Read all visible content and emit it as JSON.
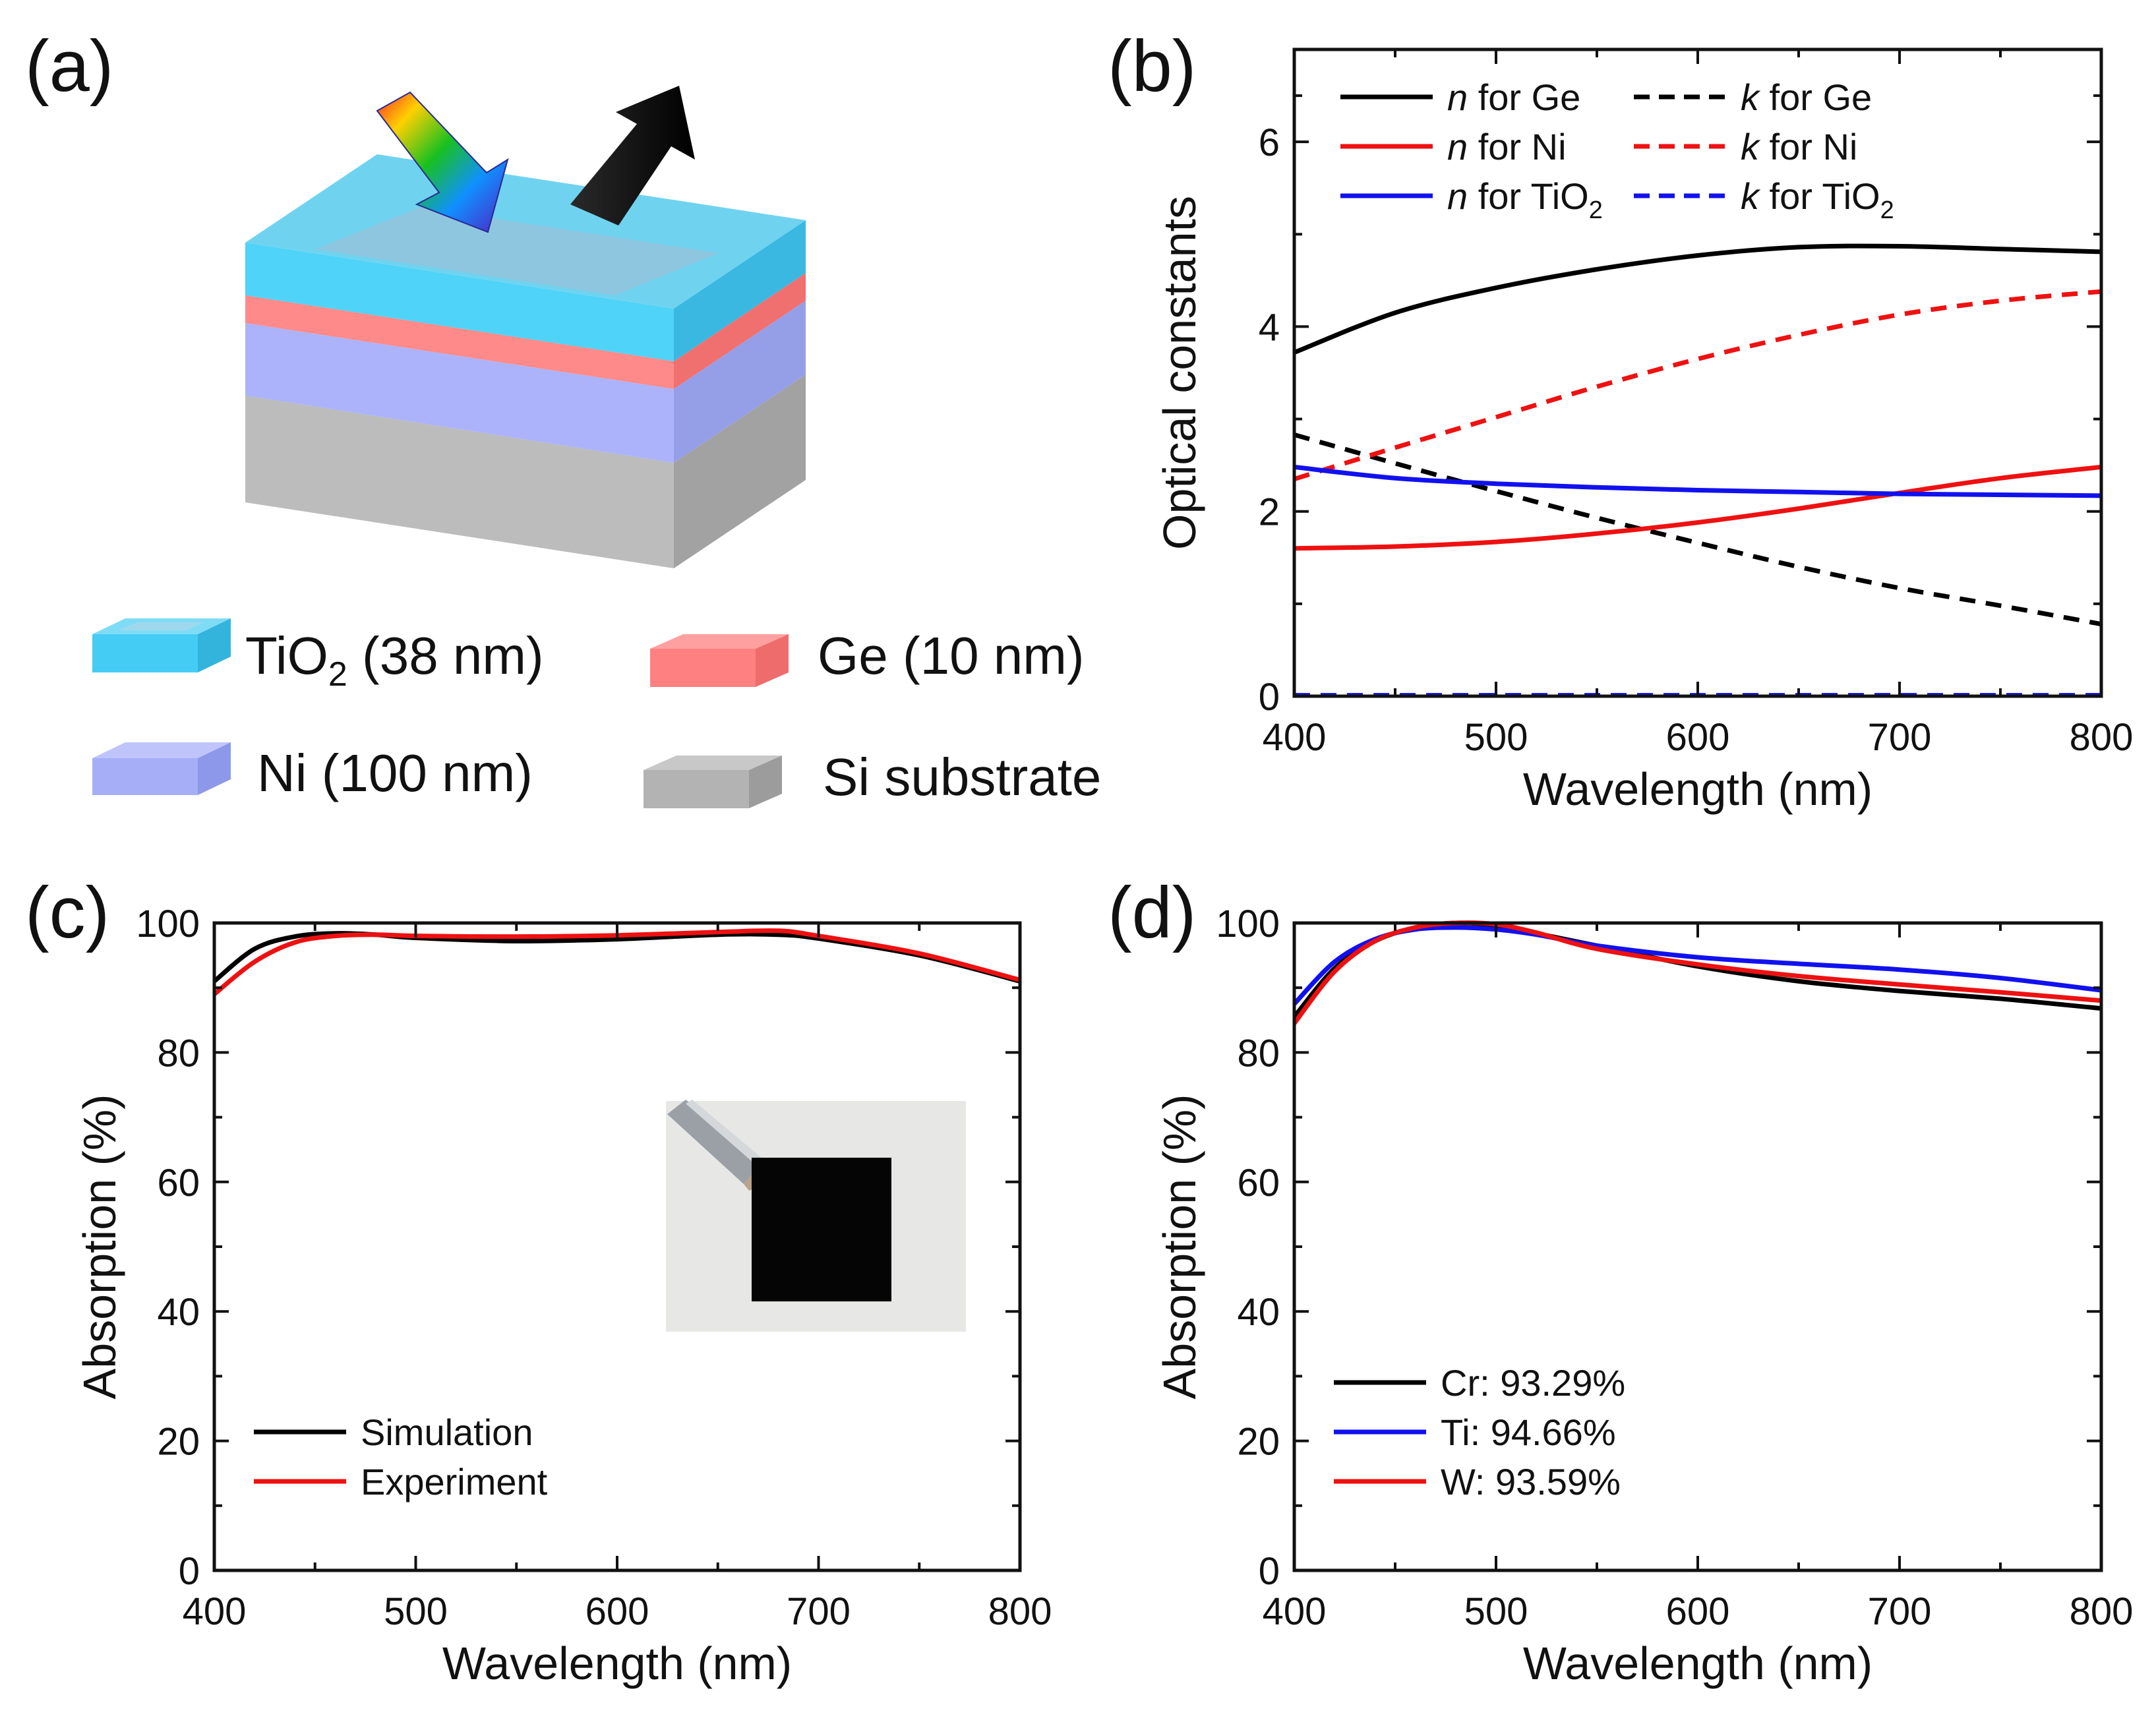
{
  "panels": {
    "a": {
      "label": "(a)",
      "layers": [
        {
          "name": "TiO",
          "sub": "2",
          "suffix": " (38 nm)",
          "color": "#45ccf5"
        },
        {
          "name": "Ge (10 nm)",
          "color": "#ff8080"
        },
        {
          "name": "Ni (100 nm)",
          "color": "#a6aef8"
        },
        {
          "name": "Si substrate",
          "color": "#b3b3b3"
        }
      ]
    },
    "b": {
      "label": "(b)"
    },
    "c": {
      "label": "(c)"
    },
    "d": {
      "label": "(d)"
    }
  },
  "chart_data": [
    {
      "id": "b",
      "type": "line",
      "xlabel": "Wavelength (nm)",
      "ylabel": "Optical constants",
      "xlim": [
        400,
        800
      ],
      "ylim": [
        0,
        7
      ],
      "xticks": [
        "400",
        "500",
        "600",
        "700",
        "800"
      ],
      "yticks": [
        "0",
        "2",
        "4",
        "6"
      ],
      "x": [
        400,
        450,
        500,
        550,
        600,
        650,
        700,
        750,
        800
      ],
      "series": [
        {
          "name": "n for Ge",
          "italic": "n",
          "rest": " for Ge",
          "color": "#000000",
          "dash": false,
          "values": [
            3.72,
            4.15,
            4.42,
            4.62,
            4.77,
            4.86,
            4.87,
            4.84,
            4.81
          ]
        },
        {
          "name": "k for Ge",
          "italic": "k",
          "rest": " for Ge",
          "color": "#000000",
          "dash": true,
          "values": [
            2.83,
            2.52,
            2.22,
            1.93,
            1.66,
            1.4,
            1.17,
            0.98,
            0.78
          ]
        },
        {
          "name": "n for Ni",
          "italic": "n",
          "rest": " for Ni",
          "color": "#ee1111",
          "dash": false,
          "values": [
            1.6,
            1.62,
            1.67,
            1.76,
            1.88,
            2.03,
            2.2,
            2.36,
            2.48
          ]
        },
        {
          "name": "k for Ni",
          "italic": "k",
          "rest": " for Ni",
          "color": "#ee1111",
          "dash": true,
          "values": [
            2.35,
            2.69,
            3.02,
            3.35,
            3.65,
            3.91,
            4.13,
            4.28,
            4.38
          ]
        },
        {
          "name": "n for TiO2",
          "italic": "n",
          "rest": " for TiO",
          "sub": "2",
          "color": "#1111ee",
          "dash": false,
          "values": [
            2.48,
            2.36,
            2.3,
            2.26,
            2.23,
            2.21,
            2.19,
            2.18,
            2.17
          ]
        },
        {
          "name": "k for TiO2",
          "italic": "k",
          "rest": " for TiO",
          "sub": "2",
          "color": "#1111ee",
          "dash": true,
          "values": [
            0.01,
            0.01,
            0.01,
            0.01,
            0.01,
            0.01,
            0.01,
            0.01,
            0.01
          ]
        }
      ]
    },
    {
      "id": "c",
      "type": "line",
      "xlabel": "Wavelength (nm)",
      "ylabel": "Absorption (%)",
      "xlim": [
        400,
        800
      ],
      "ylim": [
        0,
        100
      ],
      "xticks": [
        "400",
        "500",
        "600",
        "700",
        "800"
      ],
      "yticks": [
        "0",
        "20",
        "40",
        "60",
        "80",
        "100"
      ],
      "x": [
        400,
        420,
        440,
        460,
        480,
        500,
        550,
        600,
        650,
        680,
        700,
        750,
        800
      ],
      "series": [
        {
          "name": "Simulation",
          "color": "#000000",
          "values": [
            91.0,
            96.0,
            97.9,
            98.4,
            98.2,
            97.7,
            97.2,
            97.5,
            98.2,
            98.2,
            97.6,
            95.0,
            91.0
          ]
        },
        {
          "name": "Experiment",
          "color": "#ee1111",
          "values": [
            89.0,
            94.0,
            97.0,
            98.0,
            98.2,
            98.0,
            97.9,
            98.1,
            98.6,
            98.8,
            98.0,
            95.3,
            91.2
          ]
        }
      ]
    },
    {
      "id": "d",
      "type": "line",
      "xlabel": "Wavelength (nm)",
      "ylabel": "Absorption (%)",
      "xlim": [
        400,
        800
      ],
      "ylim": [
        0,
        100
      ],
      "xticks": [
        "400",
        "500",
        "600",
        "700",
        "800"
      ],
      "yticks": [
        "0",
        "20",
        "40",
        "60",
        "80",
        "100"
      ],
      "x": [
        400,
        420,
        440,
        460,
        480,
        500,
        520,
        550,
        600,
        650,
        700,
        750,
        800
      ],
      "series": [
        {
          "name": "Cr: 93.29%",
          "color": "#000000",
          "values": [
            85.5,
            93.0,
            97.2,
            99.3,
            100.0,
            99.6,
            98.4,
            96.5,
            93.3,
            91.0,
            89.5,
            88.3,
            86.8
          ]
        },
        {
          "name": "Ti: 94.66%",
          "color": "#1111ee",
          "values": [
            87.5,
            94.0,
            97.5,
            99.0,
            99.3,
            99.0,
            98.2,
            96.5,
            94.7,
            93.7,
            92.8,
            91.5,
            89.6
          ]
        },
        {
          "name": "W: 93.59%",
          "color": "#ee1111",
          "values": [
            84.5,
            92.5,
            97.2,
            99.3,
            100.0,
            99.8,
            98.5,
            96.0,
            93.6,
            91.8,
            90.5,
            89.3,
            88.0
          ]
        }
      ]
    }
  ]
}
